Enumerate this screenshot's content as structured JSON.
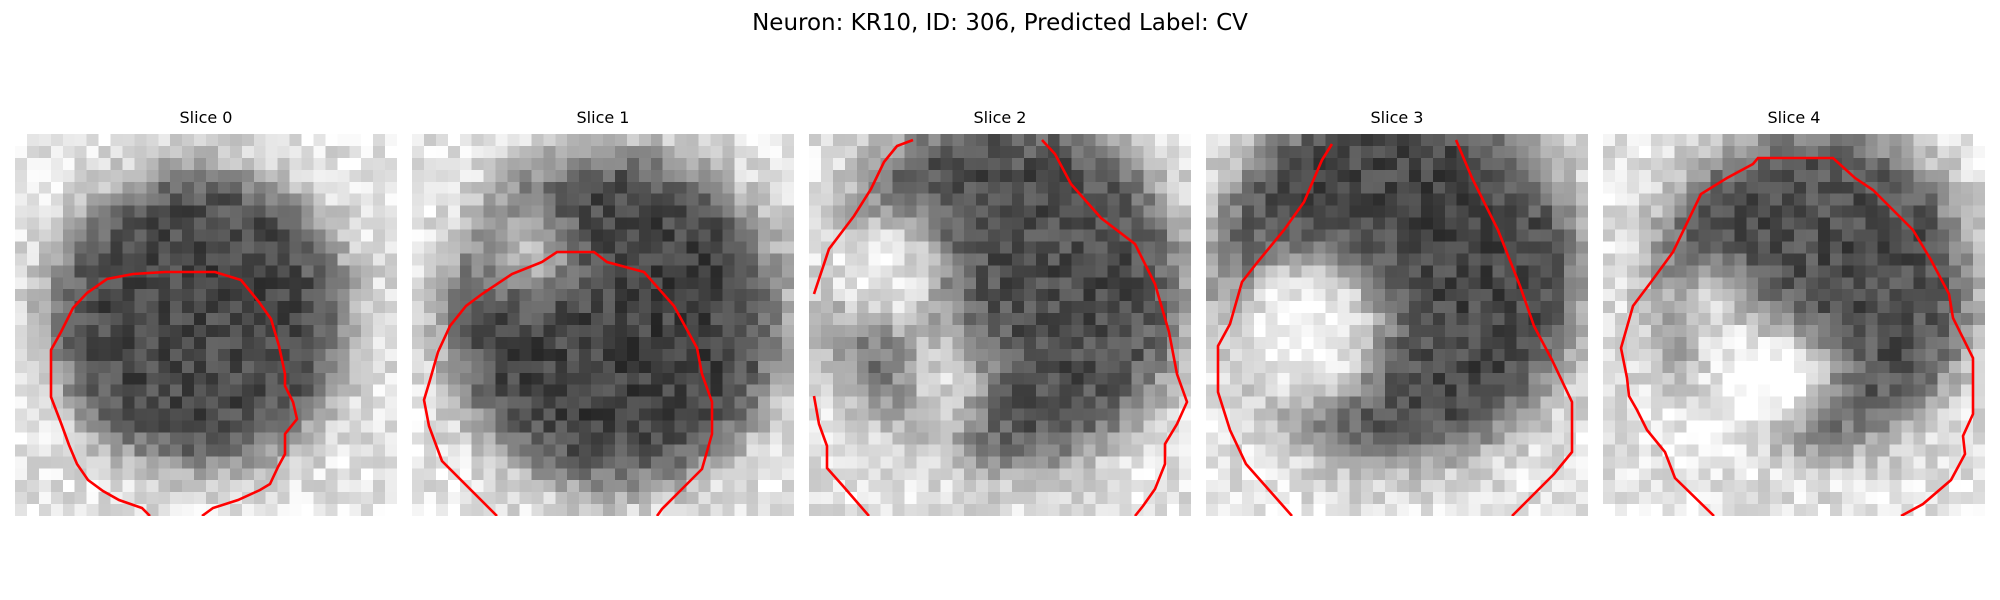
{
  "figure": {
    "title": "Neuron: KR10, ID: 306, Predicted Label: CV"
  },
  "panels": [
    {
      "title": "Slice 0"
    },
    {
      "title": "Slice 1"
    },
    {
      "title": "Slice 2"
    },
    {
      "title": "Slice 3"
    },
    {
      "title": "Slice 4"
    }
  ],
  "colors": {
    "contour": "#ff0000",
    "colormap": "grayscale"
  }
}
